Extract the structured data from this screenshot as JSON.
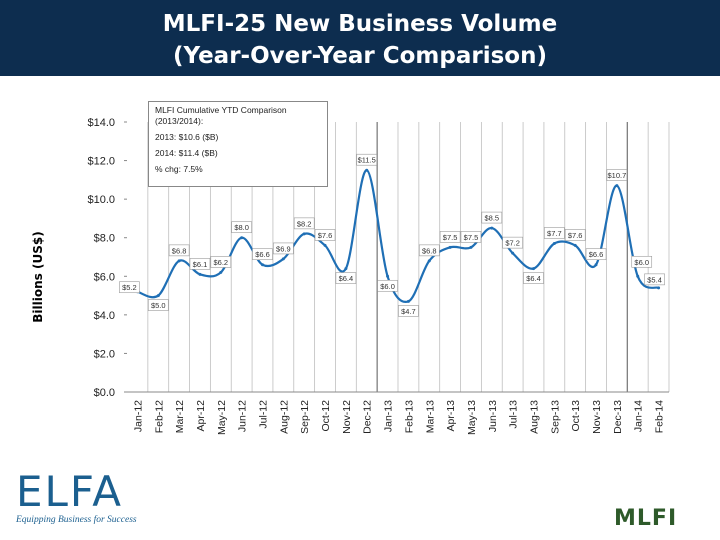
{
  "header": {
    "title_line1": "MLFI-25 New Business Volume",
    "title_line2": "(Year-Over-Year Comparison)"
  },
  "legend": {
    "line1": "MLFI Cumulative YTD Comparison",
    "line2": "(2013/2014):",
    "line3": "2013: $10.6 ($B)",
    "line4": "2014: $11.4 ($B)",
    "line5": "% chg: 7.5%"
  },
  "logos": {
    "elfa_text": "ELFA",
    "elfa_tagline": "Equipping Business for Success",
    "mlfi_text": "MLFI"
  },
  "colors": {
    "title_bg": "#0d2d4f",
    "line": "#1f6fb5",
    "separator": "#999999"
  },
  "chart_data": {
    "type": "line",
    "title": "MLFI-25 New Business Volume (Year-Over-Year Comparison)",
    "xlabel": "",
    "ylabel": "Billions (US$)",
    "ylim": [
      0,
      14
    ],
    "ytick_step": 2,
    "ytick_labels": [
      "$0.0",
      "$2.0",
      "$4.0",
      "$6.0",
      "$8.0",
      "$10.0",
      "$12.0",
      "$14.0"
    ],
    "categories": [
      "Jan-12",
      "Feb-12",
      "Mar-12",
      "Apr-12",
      "May-12",
      "Jun-12",
      "Jul-12",
      "Aug-12",
      "Sep-12",
      "Oct-12",
      "Nov-12",
      "Dec-12",
      "Jan-13",
      "Feb-13",
      "Mar-13",
      "Apr-13",
      "May-13",
      "Jun-13",
      "Jul-13",
      "Aug-13",
      "Sep-13",
      "Oct-13",
      "Nov-13",
      "Dec-13",
      "Jan-14",
      "Feb-14"
    ],
    "values": [
      5.2,
      5.0,
      6.8,
      6.1,
      6.2,
      8.0,
      6.6,
      6.9,
      8.2,
      7.6,
      6.4,
      11.5,
      6.0,
      4.7,
      6.8,
      7.5,
      7.5,
      8.5,
      7.2,
      6.4,
      7.7,
      7.6,
      6.6,
      10.7,
      6.0,
      5.4
    ],
    "data_labels": [
      "$5.2",
      "$5.0",
      "$6.8",
      "$6.1",
      "$6.2",
      "$8.0",
      "$6.6",
      "$6.9",
      "$8.2",
      "$7.6",
      "$6.4",
      "$11.5",
      "$6.0",
      "$4.7",
      "$6.8",
      "$7.5",
      "$7.5",
      "$8.5",
      "$7.2",
      "$6.4",
      "$7.7",
      "$7.6",
      "$6.6",
      "$10.7",
      "$6.0",
      "$5.4"
    ],
    "year_separators_after": [
      "Dec-12",
      "Dec-13"
    ],
    "grid": "vertical"
  }
}
